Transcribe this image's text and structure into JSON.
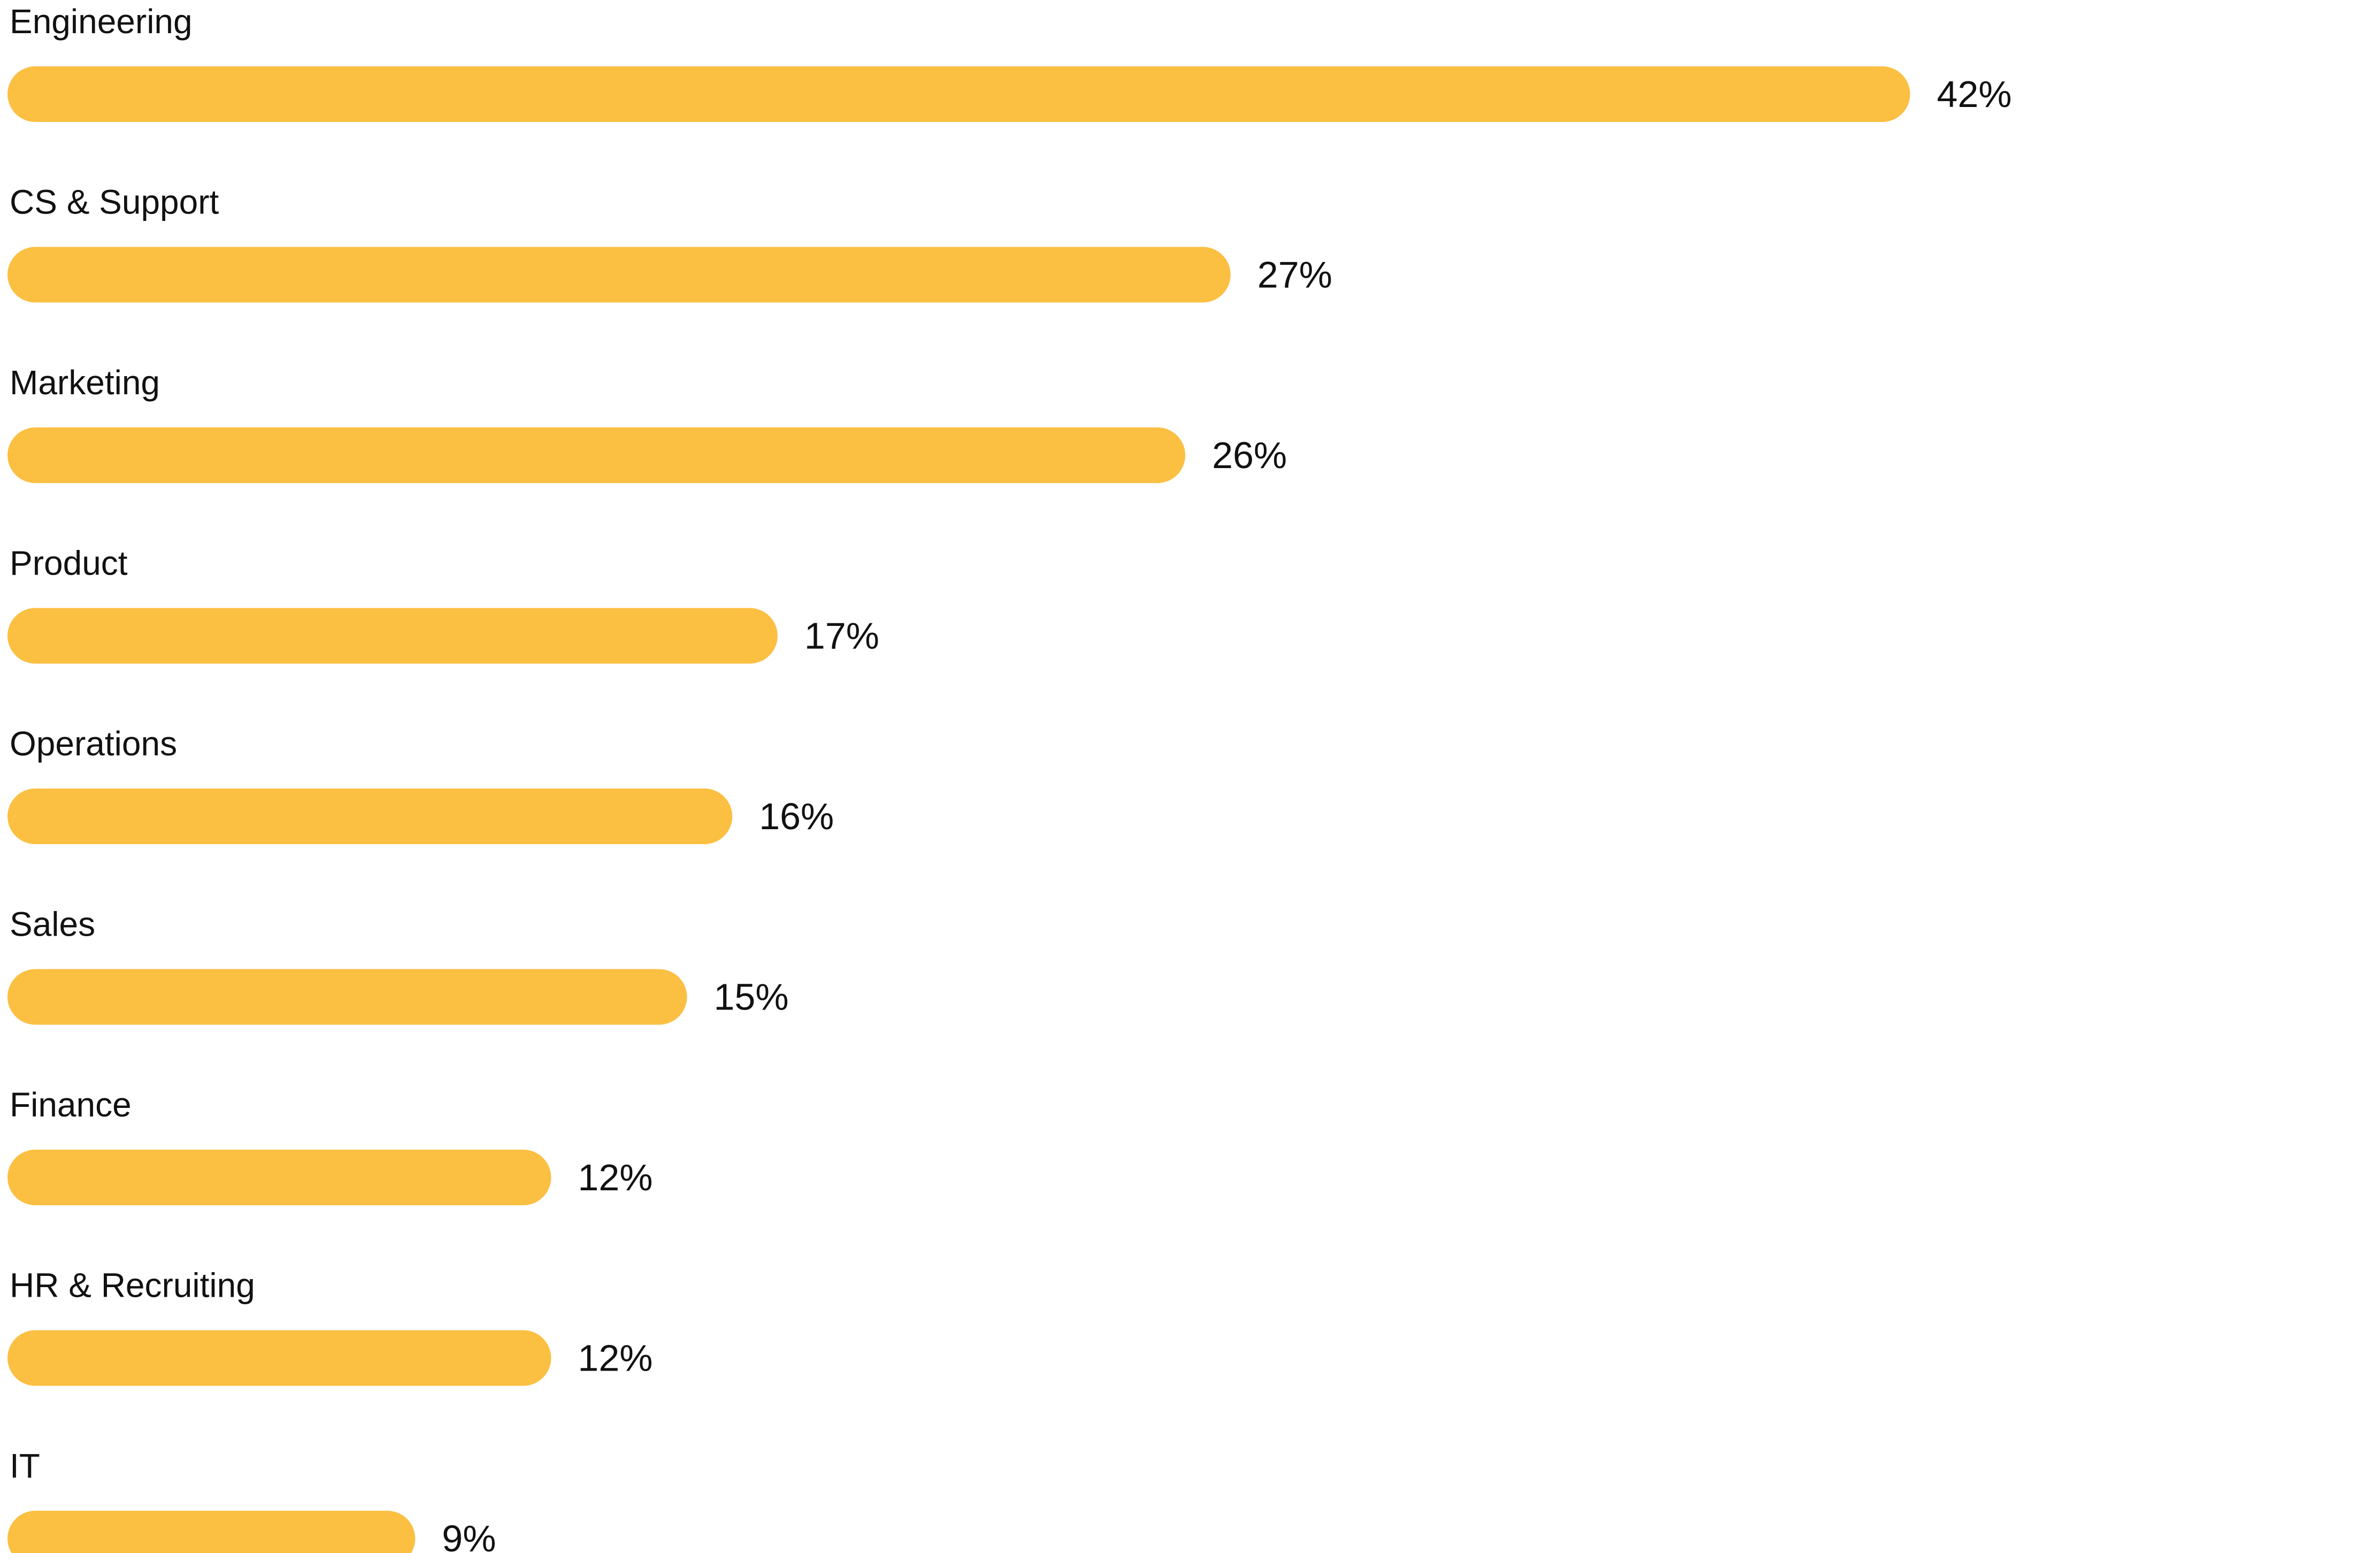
{
  "chart_data": {
    "type": "bar",
    "orientation": "horizontal",
    "title": "",
    "xlabel": "",
    "ylabel": "",
    "categories": [
      "Engineering",
      "CS & Support",
      "Marketing",
      "Product",
      "Operations",
      "Sales",
      "Finance",
      "HR & Recruiting",
      "IT"
    ],
    "values": [
      42,
      27,
      26,
      17,
      16,
      15,
      12,
      12,
      9
    ],
    "value_labels": [
      "42%",
      "27%",
      "26%",
      "17%",
      "16%",
      "15%",
      "12%",
      "12%",
      "9%"
    ],
    "unit": "%",
    "grid": false,
    "legend": "none",
    "bar_color": "#FBBF42"
  }
}
